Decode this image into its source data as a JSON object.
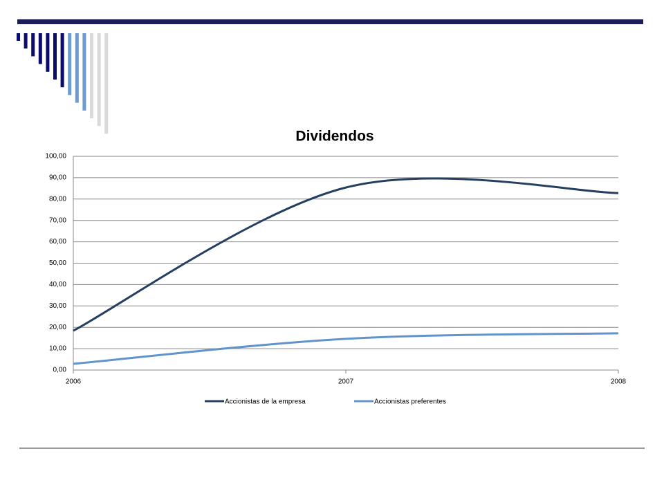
{
  "chart_data": {
    "type": "line",
    "title": "Dividendos",
    "categories": [
      "2006",
      "2007",
      "2008"
    ],
    "series": [
      {
        "name": "Accionistas de la empresa",
        "color": "#243f60",
        "values": [
          18.4,
          85.4,
          82.8
        ]
      },
      {
        "name": "Accionistas preferentes",
        "color": "#6193cc",
        "values": [
          2.9,
          14.6,
          17.2
        ]
      }
    ],
    "smooth": true,
    "ylim": [
      0,
      100
    ],
    "yticks": [
      {
        "value": 0,
        "label": "0,00"
      },
      {
        "value": 10,
        "label": "10,00"
      },
      {
        "value": 20,
        "label": "20,00"
      },
      {
        "value": 30,
        "label": "30,00"
      },
      {
        "value": 40,
        "label": "40,00"
      },
      {
        "value": 50,
        "label": "50,00"
      },
      {
        "value": 60,
        "label": "60,00"
      },
      {
        "value": 70,
        "label": "70,00"
      },
      {
        "value": 80,
        "label": "80,00"
      },
      {
        "value": 90,
        "label": "90,00"
      },
      {
        "value": 100,
        "label": "100,00"
      }
    ],
    "grid": true,
    "legend": "bottom"
  }
}
